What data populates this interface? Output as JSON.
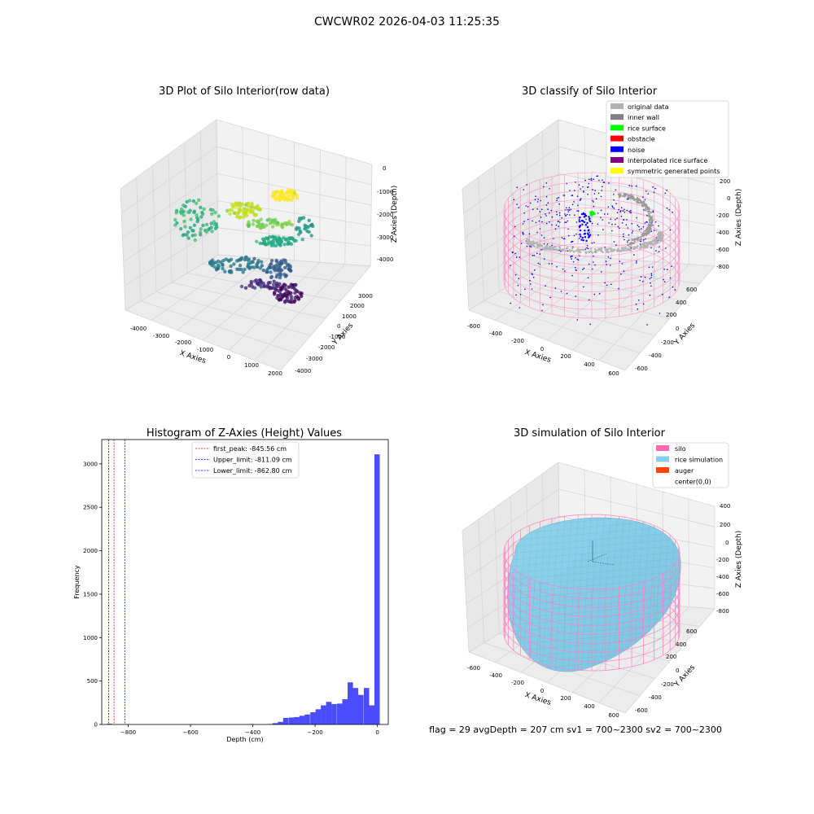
{
  "figure": {
    "suptitle": "CWCWR02 2026-04-03 11:25:35",
    "footer_text": "flag = 29  avgDepth = 207 cm  sv1 = 700~2300  sv2 = 700~2300"
  },
  "panels": {
    "raw": {
      "title": "3D Plot of Silo Interior(row data)",
      "xlabel": "X Axies",
      "ylabel": "Y Axies",
      "zlabel": "Z Axies (Depth)",
      "x_ticks": [
        "-4000",
        "-3000",
        "-2000",
        "-1000",
        "0",
        "1000",
        "2000"
      ],
      "y_ticks": [
        "-4000",
        "-3000",
        "-2000",
        "-1000",
        "0",
        "1000",
        "2000",
        "3000"
      ],
      "z_ticks": [
        "0",
        "-1000",
        "-2000",
        "-3000",
        "-4000"
      ]
    },
    "classify": {
      "title": "3D classify of Silo Interior",
      "xlabel": "X Axies",
      "ylabel": "Y Axies",
      "zlabel": "Z Axies (Depth)",
      "x_ticks": [
        "-600",
        "-400",
        "-200",
        "0",
        "200",
        "400",
        "600"
      ],
      "y_ticks": [
        "-600",
        "-400",
        "-200",
        "0",
        "200",
        "400",
        "600"
      ],
      "z_ticks": [
        "200",
        "0",
        "-200",
        "-400",
        "-600",
        "-800"
      ],
      "legend": [
        {
          "label": "original data",
          "color": "#b3b3b3"
        },
        {
          "label": "inner wall",
          "color": "#808080"
        },
        {
          "label": "rice surface",
          "color": "#00ff00"
        },
        {
          "label": "obstacle",
          "color": "#ff0000"
        },
        {
          "label": "noise",
          "color": "#0000ff"
        },
        {
          "label": "interpolated rice surface",
          "color": "#800080"
        },
        {
          "label": "symmetric generated points",
          "color": "#ffff00"
        }
      ]
    },
    "simulation": {
      "title": "3D simulation of Silo Interior",
      "xlabel": "X Axies",
      "ylabel": "Y Axies",
      "zlabel": "Z Axies (Depth)",
      "x_ticks": [
        "-600",
        "-400",
        "-200",
        "0",
        "200",
        "400",
        "600"
      ],
      "y_ticks": [
        "-600",
        "-400",
        "-200",
        "0",
        "200",
        "400",
        "600"
      ],
      "z_ticks": [
        "400",
        "200",
        "0",
        "-200",
        "-400",
        "-600",
        "-800"
      ],
      "legend": [
        {
          "label": "silo",
          "color": "#ff69b4"
        },
        {
          "label": "rice simulation",
          "color": "#87ceeb"
        },
        {
          "label": "auger",
          "color": "#ff4500"
        },
        {
          "label": "center(0,0)",
          "color": "#ffffff"
        }
      ]
    }
  },
  "chart_data": [
    {
      "type": "bar",
      "title": "Histogram of Z-Axies (Height) Values",
      "xlabel": "Depth (cm)",
      "ylabel": "Frequency",
      "xlim": [
        -885,
        35
      ],
      "ylim": [
        0,
        3280
      ],
      "x_ticks": [
        -800,
        -600,
        -400,
        -200,
        0
      ],
      "y_ticks": [
        0,
        500,
        1000,
        1500,
        2000,
        2500,
        3000
      ],
      "bin_width": 17.2,
      "bar_color": "#0000ff",
      "bins": [
        {
          "x": -860,
          "value": 8
        },
        {
          "x": -405,
          "value": 4
        },
        {
          "x": -345,
          "value": 5
        },
        {
          "x": -328,
          "value": 15
        },
        {
          "x": -311,
          "value": 30
        },
        {
          "x": -294,
          "value": 75
        },
        {
          "x": -276,
          "value": 80
        },
        {
          "x": -259,
          "value": 85
        },
        {
          "x": -242,
          "value": 100
        },
        {
          "x": -225,
          "value": 115
        },
        {
          "x": -207,
          "value": 140
        },
        {
          "x": -190,
          "value": 175
        },
        {
          "x": -173,
          "value": 220
        },
        {
          "x": -156,
          "value": 260
        },
        {
          "x": -139,
          "value": 235
        },
        {
          "x": -121,
          "value": 240
        },
        {
          "x": -104,
          "value": 290
        },
        {
          "x": -87,
          "value": 485
        },
        {
          "x": -70,
          "value": 420
        },
        {
          "x": -53,
          "value": 340
        },
        {
          "x": -35,
          "value": 420
        },
        {
          "x": -18,
          "value": 220
        },
        {
          "x": -1,
          "value": 3110
        }
      ],
      "vlines": [
        {
          "label": "first_peak: -845.56 cm",
          "x": -845.56,
          "color": "#ff0000"
        },
        {
          "label": "Upper_limit: -811.09 cm",
          "x": -811.09,
          "color": "#0000ff"
        },
        {
          "label": "Lower_limit: -862.80 cm",
          "x": -862.8,
          "color": "#0000ff"
        }
      ]
    }
  ]
}
